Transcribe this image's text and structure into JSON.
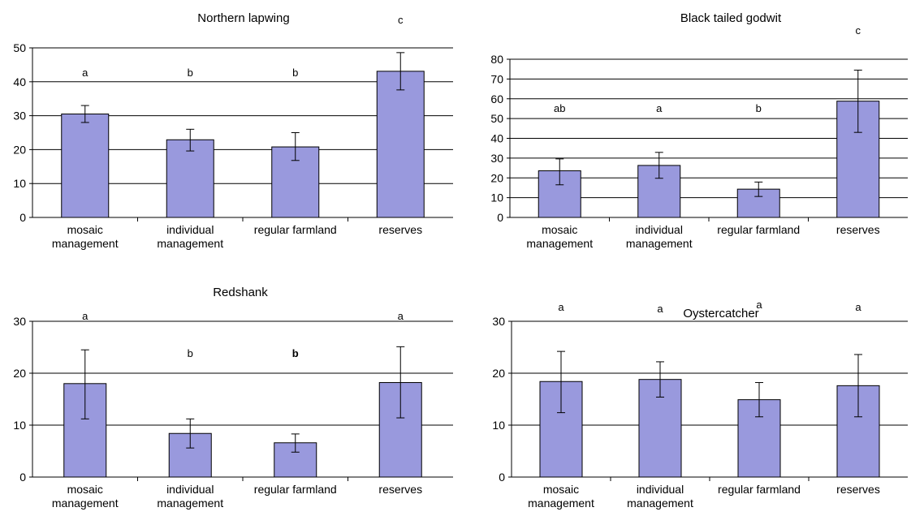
{
  "chart_data": [
    {
      "type": "bar",
      "title": "Northern lapwing",
      "categories": [
        "mosaic\nmanagement",
        "individual\nmanagement",
        "regular farmland",
        "reserves"
      ],
      "values": [
        30.5,
        22.9,
        20.8,
        43.1
      ],
      "errors": [
        [
          28.0,
          33.0
        ],
        [
          19.6,
          26.0
        ],
        [
          16.8,
          25.0
        ],
        [
          37.6,
          48.6
        ]
      ],
      "significance": [
        "a",
        "b",
        "b",
        "c"
      ],
      "ylim": [
        0,
        50
      ],
      "yticks": [
        0,
        10,
        20,
        30,
        40,
        50
      ],
      "xlabel": "",
      "ylabel": "",
      "grid": true
    },
    {
      "type": "bar",
      "title": "Black tailed godwit",
      "categories": [
        "mosaic\nmanagement",
        "individual\nmanagement",
        "regular farmland",
        "reserves"
      ],
      "values": [
        23.6,
        26.3,
        14.3,
        58.8
      ],
      "errors": [
        [
          16.5,
          29.6
        ],
        [
          19.8,
          32.9
        ],
        [
          10.6,
          17.9
        ],
        [
          43.0,
          74.5
        ]
      ],
      "significance": [
        "ab",
        "a",
        "b",
        "c"
      ],
      "ylim": [
        0,
        80
      ],
      "yticks": [
        0,
        10,
        20,
        30,
        40,
        50,
        60,
        70,
        80
      ],
      "xlabel": "",
      "ylabel": "",
      "grid": true
    },
    {
      "type": "bar",
      "title": "Redshank",
      "categories": [
        "mosaic\nmanagement",
        "individual\nmanagement",
        "regular farmland",
        "reserves"
      ],
      "values": [
        18.0,
        8.4,
        6.6,
        18.2
      ],
      "errors": [
        [
          11.2,
          24.5
        ],
        [
          5.6,
          11.2
        ],
        [
          4.8,
          8.3
        ],
        [
          11.4,
          25.1
        ]
      ],
      "significance": [
        "a",
        "b",
        "b",
        "a"
      ],
      "ylim": [
        0,
        30
      ],
      "yticks": [
        0,
        10,
        20,
        30
      ],
      "xlabel": "",
      "ylabel": "",
      "grid": true
    },
    {
      "type": "bar",
      "title": "Oystercatcher",
      "categories": [
        "mosaic\nmanagement",
        "individual\nmanagement",
        "regular farmland",
        "reserves"
      ],
      "values": [
        18.4,
        18.8,
        14.9,
        17.6
      ],
      "errors": [
        [
          12.4,
          24.2
        ],
        [
          15.4,
          22.2
        ],
        [
          11.6,
          18.2
        ],
        [
          11.6,
          23.6
        ]
      ],
      "significance": [
        "a",
        "a",
        "a",
        "a"
      ],
      "ylim": [
        0,
        30
      ],
      "yticks": [
        0,
        10,
        20,
        30
      ],
      "xlabel": "",
      "ylabel": "",
      "grid": true
    }
  ]
}
